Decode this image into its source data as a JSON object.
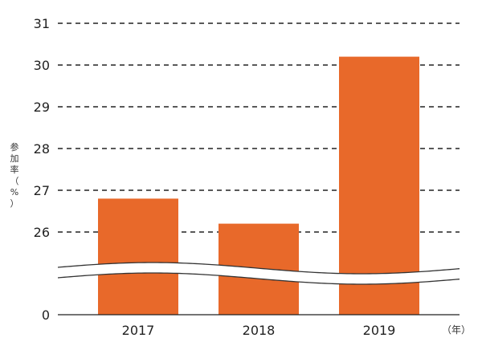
{
  "chart_data": {
    "type": "bar",
    "categories": [
      "2017",
      "2018",
      "2019"
    ],
    "series": [
      {
        "values": [
          26.8,
          26.2,
          30.2
        ]
      }
    ],
    "ylabel": "参加率（%）",
    "x_unit": "（年）",
    "yticks": [
      31,
      30,
      29,
      28,
      27,
      26,
      0
    ],
    "ylim": [
      25,
      31
    ],
    "axis_break": true,
    "bar_color": "#e8692a",
    "grid": "dashed"
  }
}
